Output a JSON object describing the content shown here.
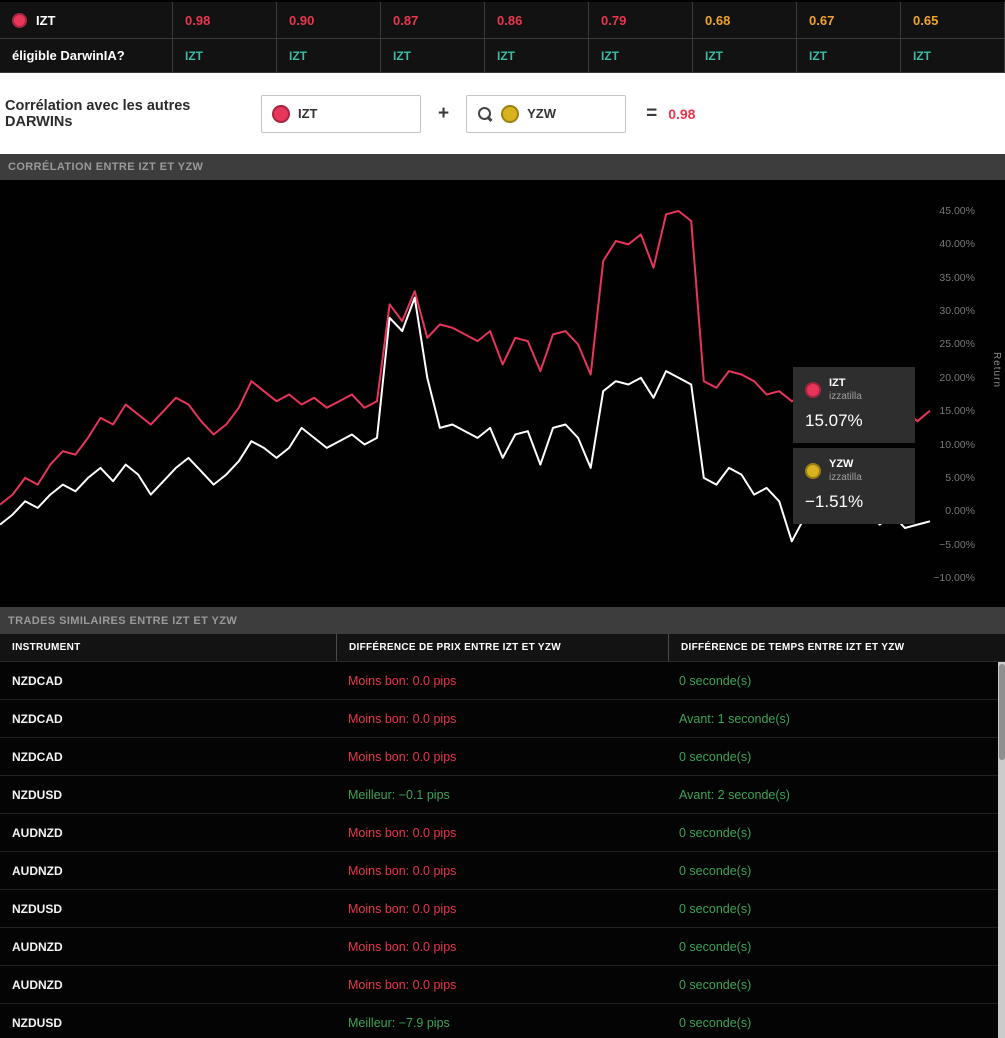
{
  "colors": {
    "izt_color": "#e8355a",
    "yzw_color": "#d9b31f",
    "high_corr": "#e8364e",
    "medium_corr": "#efa32e",
    "teal": "#3cbca6",
    "green": "#3da356"
  },
  "top_table": {
    "row_label": "IZT",
    "values": [
      {
        "text": "0.98",
        "level": "high"
      },
      {
        "text": "0.90",
        "level": "high"
      },
      {
        "text": "0.87",
        "level": "high"
      },
      {
        "text": "0.86",
        "level": "high"
      },
      {
        "text": "0.79",
        "level": "high"
      },
      {
        "text": "0.68",
        "level": "medium"
      },
      {
        "text": "0.67",
        "level": "medium"
      },
      {
        "text": "0.65",
        "level": "medium"
      }
    ],
    "eligible_label": "éligible DarwinIA?",
    "eligible_values": [
      "IZT",
      "IZT",
      "IZT",
      "IZT",
      "IZT",
      "IZT",
      "IZT",
      "IZT"
    ]
  },
  "correlation_bar": {
    "label": "Corrélation avec les autres DARWINs",
    "left_ticker": "IZT",
    "plus": "+",
    "right_ticker": "YZW",
    "equals": "=",
    "result": "0.98"
  },
  "chart_section": {
    "header": "CORRÉLATION ENTRE IZT ET YZW",
    "axis_label": "Return",
    "tooltip": {
      "items": [
        {
          "ticker": "IZT",
          "owner": "izzatilla",
          "value": "15.07%",
          "color": "#e8355a"
        },
        {
          "ticker": "YZW",
          "owner": "izzatilla",
          "value": "−1.51%",
          "color": "#d9b31f"
        }
      ]
    }
  },
  "chart_data": {
    "type": "line",
    "title": "CORRÉLATION ENTRE IZT ET YZW",
    "ylabel": "Return",
    "ylim": [
      -10,
      45
    ],
    "y_ticks": [
      45,
      40,
      35,
      30,
      25,
      20,
      15,
      10,
      5,
      0,
      -5,
      -10
    ],
    "grid": false,
    "legend_position": "right-overlay",
    "series": [
      {
        "name": "IZT",
        "color": "#e8355a",
        "final_value": "15.07%",
        "values": [
          1,
          2.5,
          5,
          4,
          7,
          9,
          8.5,
          11,
          14,
          13,
          16,
          14.5,
          13,
          15,
          17,
          16,
          13.5,
          11.5,
          13,
          15.5,
          19.5,
          18,
          16.5,
          17.5,
          16,
          17,
          15.5,
          16.5,
          17.5,
          15.5,
          16.5,
          31,
          28.5,
          33,
          26,
          28,
          27.5,
          26.5,
          25.5,
          27,
          22,
          26,
          25.5,
          21,
          26.5,
          27,
          25,
          20.5,
          37.5,
          40.5,
          40,
          41.5,
          36.5,
          44.5,
          45,
          43.5,
          19.5,
          18.5,
          21,
          20.5,
          19.5,
          17.5,
          18,
          16.5,
          17.5,
          16,
          17,
          15.5,
          16.5,
          14.5,
          15.5,
          14,
          15,
          13.5,
          15.07
        ]
      },
      {
        "name": "YZW",
        "color": "#ffffff",
        "final_value": "−1.51%",
        "values": [
          -2,
          -0.5,
          1.5,
          0.5,
          2.5,
          4,
          3,
          5,
          6.5,
          4.5,
          7,
          5.5,
          2.5,
          4.5,
          6.5,
          8,
          6,
          4,
          5.5,
          7.5,
          10.5,
          9.5,
          8,
          9.5,
          12.5,
          11,
          9.5,
          10.5,
          11.5,
          10,
          11,
          29,
          27,
          32,
          20,
          12.5,
          13,
          12,
          11,
          12.5,
          8,
          11.5,
          12,
          7,
          12.5,
          13,
          11,
          6.5,
          18,
          19.5,
          19,
          20,
          17,
          21,
          20,
          19,
          5,
          4,
          6.5,
          5.5,
          2.5,
          3.5,
          1.5,
          -4.5,
          -1,
          0.5,
          -0.5,
          1,
          -1.5,
          0,
          -2,
          -0.5,
          -2.5,
          -2,
          -1.51
        ]
      }
    ]
  },
  "trades_section": {
    "header": "TRADES SIMILAIRES ENTRE IZT ET YZW",
    "columns": [
      "INSTRUMENT",
      "DIFFÉRENCE DE PRIX ENTRE IZT ET YZW",
      "DIFFÉRENCE DE TEMPS ENTRE IZT ET YZW"
    ],
    "rows": [
      {
        "instrument": "NZDCAD",
        "price": "Moins bon: 0.0 pips",
        "price_status": "worse",
        "time": "0 seconde(s)"
      },
      {
        "instrument": "NZDCAD",
        "price": "Moins bon: 0.0 pips",
        "price_status": "worse",
        "time": "Avant: 1 seconde(s)"
      },
      {
        "instrument": "NZDCAD",
        "price": "Moins bon: 0.0 pips",
        "price_status": "worse",
        "time": "0 seconde(s)"
      },
      {
        "instrument": "NZDUSD",
        "price": "Meilleur: −0.1 pips",
        "price_status": "better",
        "time": "Avant: 2 seconde(s)"
      },
      {
        "instrument": "AUDNZD",
        "price": "Moins bon: 0.0 pips",
        "price_status": "worse",
        "time": "0 seconde(s)"
      },
      {
        "instrument": "AUDNZD",
        "price": "Moins bon: 0.0 pips",
        "price_status": "worse",
        "time": "0 seconde(s)"
      },
      {
        "instrument": "NZDUSD",
        "price": "Moins bon: 0.0 pips",
        "price_status": "worse",
        "time": "0 seconde(s)"
      },
      {
        "instrument": "AUDNZD",
        "price": "Moins bon: 0.0 pips",
        "price_status": "worse",
        "time": "0 seconde(s)"
      },
      {
        "instrument": "AUDNZD",
        "price": "Moins bon: 0.0 pips",
        "price_status": "worse",
        "time": "0 seconde(s)"
      },
      {
        "instrument": "NZDUSD",
        "price": "Meilleur: −7.9 pips",
        "price_status": "better",
        "time": "0 seconde(s)"
      }
    ]
  }
}
